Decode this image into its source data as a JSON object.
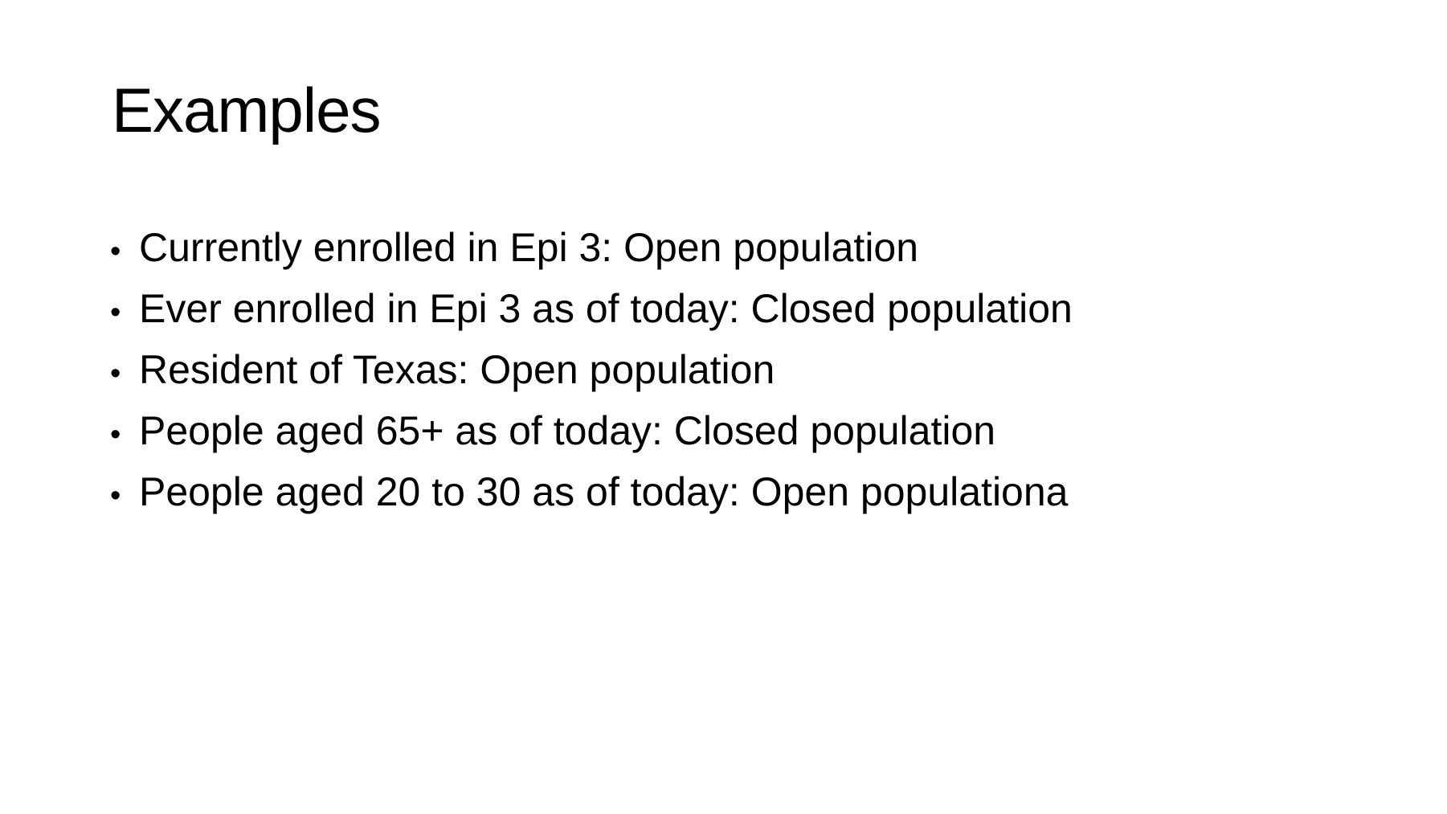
{
  "slide": {
    "title": "Examples",
    "bullet_glyph": "•",
    "bullets": [
      "Currently enrolled in Epi 3: Open population",
      "Ever enrolled in Epi 3 as of today: Closed population",
      "Resident of Texas: Open population",
      "People aged 65+ as of today: Closed population",
      "People aged 20 to 30 as of today: Open populationa"
    ]
  }
}
